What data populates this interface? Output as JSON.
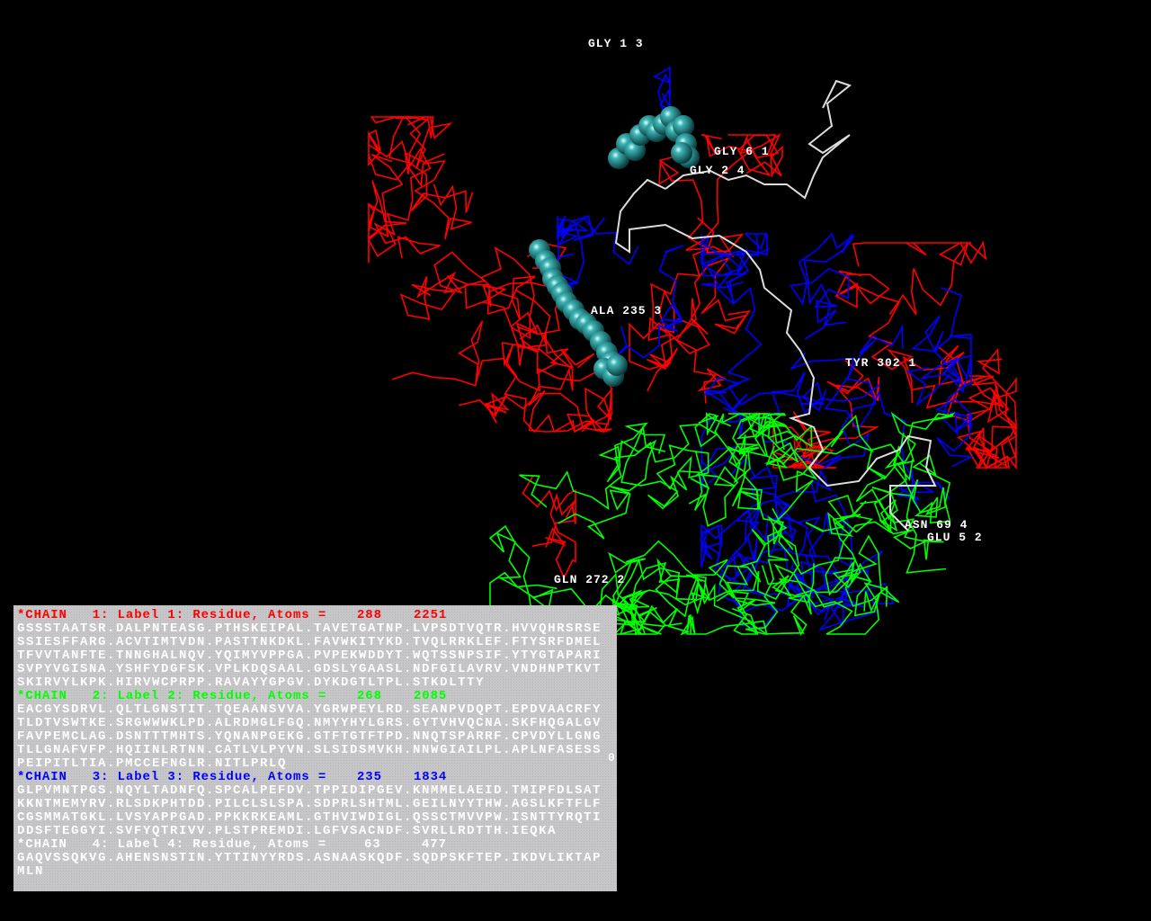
{
  "colors": {
    "chain1": "#ff0000",
    "chain2": "#00ff00",
    "chain3": "#0000ff",
    "chain4": "#ffffff",
    "sphere": "#1a8a8a",
    "panel_bg": "#c6c6c6"
  },
  "labels": [
    "GLY 1 3",
    "GLY 6 1",
    "GLY 2 4",
    "ALA 235 3",
    "TYR 302 1",
    "ASN 69 4",
    "GLU 5 2",
    "GLN 272 2"
  ],
  "chains": [
    {
      "header": "*CHAIN   1: Label 1: Residue, Atoms =",
      "residues": "288",
      "atoms": "2251",
      "color": "#ff0000",
      "sequence": [
        "GSSSTAATSR.DALPNTEASG.PTHSKEIPAL.TAVETGATNP.LVPSDTVQTR.HVVQHRSRSE",
        "SSIESFFARG.ACVTIMTVDN.PASTTNKDKL.FAVWKITYKD.TVQLRRKLEF.FTYSRFDMEL",
        "TFVVTANFTE.TNNGHALNQV.YQIMYVPPGA.PVPEKWDDYT.WQTSSNPSIF.YTYGTAPARI",
        "SVPYVGISNA.YSHFYDGFSK.VPLKDQSAAL.GDSLYGAASL.NDFGILAVRV.VNDHNPTKVT",
        "SKIRVYLKPK.HIRVWCPRPP.RAVAYYGPGV.DYKDGTLTPL.STKDLTTY"
      ]
    },
    {
      "header": "*CHAIN   2: Label 2: Residue, Atoms =",
      "residues": "268",
      "atoms": "2085",
      "color": "#00ff00",
      "sequence": [
        "EACGYSDRVL.QLTLGNSTIT.TQEAANSVVA.YGRWPEYLRD.SEANPVDQPT.EPDVAACRFY",
        "TLDTVSWTKE.SRGWWWKLPD.ALRDMGLFGQ.NMYYHYLGRS.GYTVHVQCNA.SKFHQGALGV",
        "FAVPEMCLAG.DSNTTTMHTS.YQNANPGEKG.GTFTGTFTPD.NNQTSPARRF.CPVDYLLGNG",
        "TLLGNAFVFP.HQIINLRTNN.CATLVLPYVN.SLSIDSMVKH.NNWGIAILPL.APLNFASESS",
        "PEIPITLTIA.PMCCEFNGLR.NITLPRLQ"
      ],
      "stray": "0"
    },
    {
      "header": "*CHAIN   3: Label 3: Residue, Atoms =",
      "residues": "235",
      "atoms": "1834",
      "color": "#0000ff",
      "sequence": [
        "GLPVMNTPGS.NQYLTADNFQ.SPCALPEFDV.TPPIDIPGEV.KNMMELAEID.TMIPFDLSAT",
        "KKNTMEMYRV.RLSDKPHTDD.PILCLSLSPA.SDPRLSHTML.GEILNYYTHW.AGSLKFTFLF",
        "CGSMMATGKL.LVSYAPPGAD.PPKKRKEAML.GTHVIWDIGL.QSSCTMVVPW.ISNTTYRQTI",
        "DDSFTEGGYI.SVFYQTRIVV.PLSTPREMDI.LGFVSACNDF.SVRLLRDTTH.IEQKA"
      ]
    },
    {
      "header": "*CHAIN   4: Label 4: Residue, Atoms =",
      "residues": "63",
      "atoms": "477",
      "color": "#ffffff",
      "sequence": [
        "GAQVSSQKVG.AHENSNSTIN.YTTINYYRDS.ASNAASKQDF.SQDPSKFTEP.IKDVLIKTAP",
        "MLN"
      ]
    }
  ]
}
